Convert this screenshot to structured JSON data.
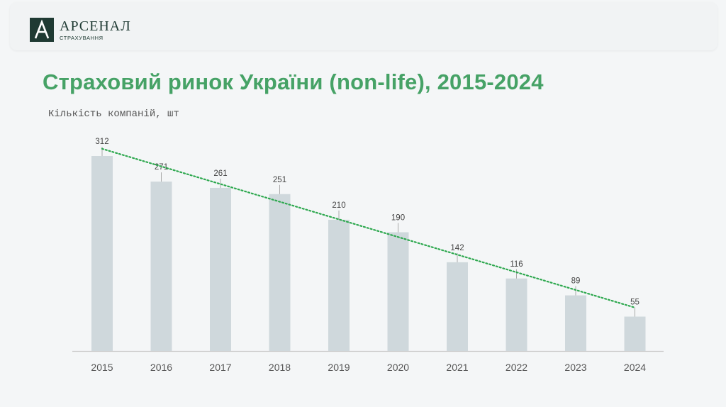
{
  "logo": {
    "name": "АРСЕНАЛ",
    "subtitle": "СТРАХУВАННЯ",
    "mark_letter": "A"
  },
  "chart_data": {
    "type": "bar",
    "title": "Страховий ринок України (non-life), 2015-2024",
    "ylabel": "Кількість компаній, шт",
    "xlabel": "",
    "categories": [
      "2015",
      "2016",
      "2017",
      "2018",
      "2019",
      "2020",
      "2021",
      "2022",
      "2023",
      "2024"
    ],
    "values": [
      312,
      271,
      261,
      251,
      210,
      190,
      142,
      116,
      89,
      55
    ],
    "ylim": [
      0,
      312
    ],
    "grid": false,
    "trendline": {
      "type": "linear",
      "style": "dotted",
      "color": "#2ea84f",
      "from": "2015",
      "to": "2024"
    },
    "bar_color": "#cfd8dc",
    "axis_color": "#c9c9c9"
  }
}
